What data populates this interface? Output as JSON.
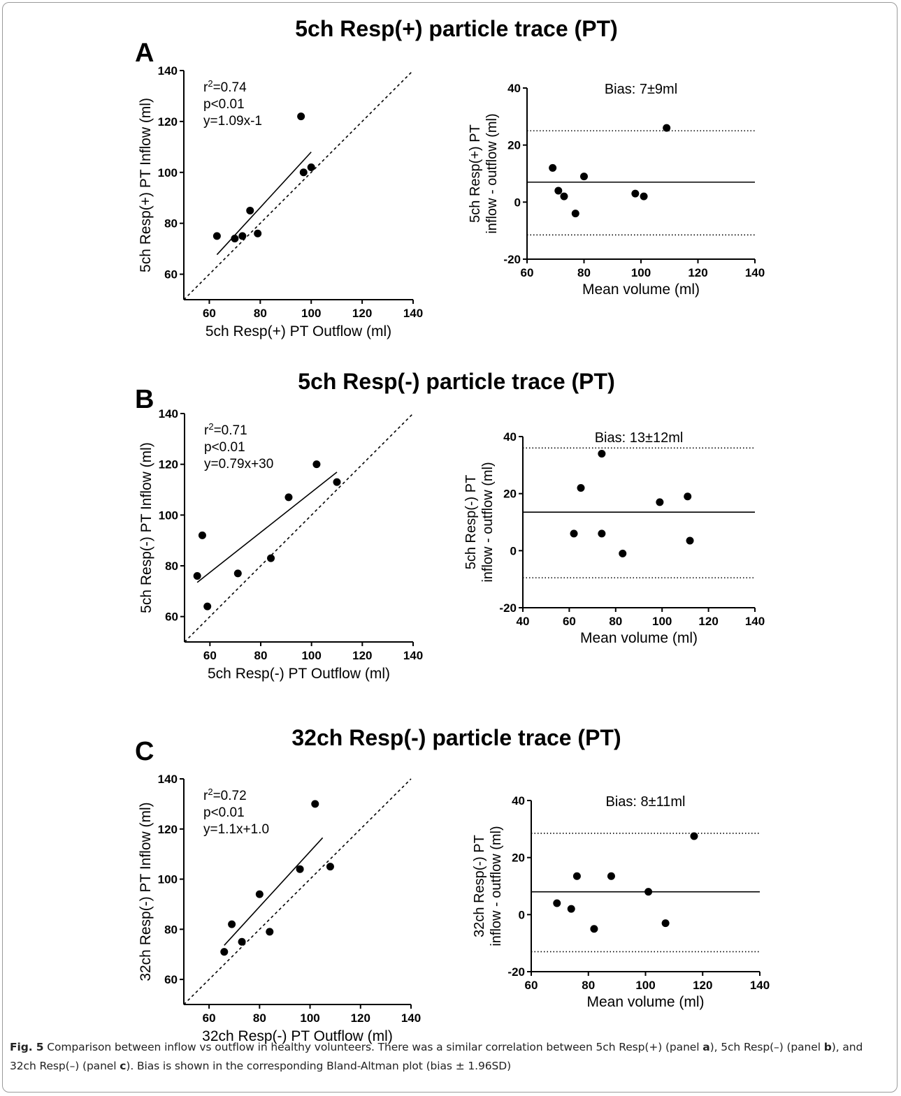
{
  "figure": {
    "caption": {
      "label": "Fig. 5",
      "text1": " Comparison between inflow vs outflow in healthy volunteers. There was a similar correlation between 5ch Resp(+) (panel ",
      "p1": "a",
      "text2": "), 5ch Resp(–) (panel ",
      "p2": "b",
      "text3": "), and 32ch Resp(–) (panel ",
      "p3": "c",
      "text4": "). Bias is shown in the corresponding Bland-Altman plot (bias ± 1.96SD)"
    }
  },
  "chart_data": [
    {
      "panel": "A",
      "title": "5ch Resp(+) particle trace (PT)",
      "type": "scatter",
      "xlabel": "5ch Resp(+) PT Outflow (ml)",
      "ylabel": "5ch Resp(+) PT Inflow (ml)",
      "xlim": [
        50,
        140
      ],
      "ylim": [
        50,
        140
      ],
      "xticks": [
        60,
        80,
        100,
        120,
        140
      ],
      "yticks": [
        60,
        80,
        100,
        120,
        140
      ],
      "stats": [
        "r²=0.74",
        "p<0.01",
        "y=1.09x-1"
      ],
      "x": [
        63,
        70,
        73,
        76,
        79,
        96,
        97,
        100
      ],
      "y": [
        75,
        74,
        75,
        85,
        76,
        122,
        100,
        102
      ],
      "regression_x": [
        63,
        100
      ],
      "identity_line": true
    },
    {
      "panel": "A",
      "title": "Bias: 7±9ml",
      "type": "scatter",
      "xlabel": "Mean volume (ml)",
      "ylabel": "5ch Resp(+) PT\ninflow - outflow (ml)",
      "xlim": [
        60,
        140
      ],
      "ylim": [
        -20,
        40
      ],
      "xticks": [
        60,
        80,
        100,
        120,
        140
      ],
      "yticks": [
        -20,
        0,
        20,
        40
      ],
      "x": [
        69,
        71,
        73,
        77,
        80,
        98,
        101,
        109
      ],
      "y": [
        12,
        4,
        2,
        -4,
        9,
        3,
        2,
        26
      ],
      "bias": 7,
      "upper_loa": 25,
      "lower_loa": -11.5
    },
    {
      "panel": "B",
      "title": "5ch Resp(-) particle trace (PT)",
      "type": "scatter",
      "xlabel": "5ch Resp(-) PT Outflow (ml)",
      "ylabel": "5ch Resp(-) PT Inflow (ml)",
      "xlim": [
        50,
        140
      ],
      "ylim": [
        50,
        140
      ],
      "xticks": [
        60,
        80,
        100,
        120,
        140
      ],
      "yticks": [
        60,
        80,
        100,
        120,
        140
      ],
      "stats": [
        "r²=0.71",
        "p<0.01",
        "y=0.79x+30"
      ],
      "x": [
        55,
        57,
        59,
        71,
        84,
        91,
        102,
        110
      ],
      "y": [
        76,
        92,
        64,
        77,
        83,
        107,
        120,
        113
      ],
      "regression_x": [
        55,
        110
      ],
      "identity_line": true
    },
    {
      "panel": "B",
      "title": "Bias: 13±12ml",
      "type": "scatter",
      "xlabel": "Mean volume (ml)",
      "ylabel": "5ch Resp(-) PT\ninflow - outflow (ml)",
      "xlim": [
        40,
        140
      ],
      "ylim": [
        -20,
        40
      ],
      "xticks": [
        40,
        60,
        80,
        100,
        120,
        140
      ],
      "yticks": [
        -20,
        0,
        20,
        40
      ],
      "x": [
        62,
        65,
        74,
        74,
        83,
        99,
        111,
        112
      ],
      "y": [
        6,
        22,
        34,
        6,
        -1,
        17,
        19,
        3.5
      ],
      "bias": 13.5,
      "upper_loa": 36,
      "lower_loa": -9.5
    },
    {
      "panel": "C",
      "title": "32ch Resp(-) particle trace (PT)",
      "type": "scatter",
      "xlabel": "32ch Resp(-) PT Outflow (ml)",
      "ylabel": "32ch Resp(-) PT Inflow (ml)",
      "xlim": [
        50,
        140
      ],
      "ylim": [
        50,
        140
      ],
      "xticks": [
        60,
        80,
        100,
        120,
        140
      ],
      "yticks": [
        60,
        80,
        100,
        120,
        140
      ],
      "stats": [
        "r²=0.72",
        "p<0.01",
        "y=1.1x+1.0"
      ],
      "x": [
        66,
        69,
        73,
        80,
        84,
        96,
        102,
        108
      ],
      "y": [
        71,
        82,
        75,
        94,
        79,
        104,
        130,
        105
      ],
      "regression_x": [
        66,
        105
      ],
      "identity_line": true
    },
    {
      "panel": "C",
      "title": "Bias: 8±11ml",
      "type": "scatter",
      "xlabel": "Mean volume (ml)",
      "ylabel": "32ch Resp(-) PT\ninflow - outflow (ml)",
      "xlim": [
        60,
        140
      ],
      "ylim": [
        -20,
        40
      ],
      "xticks": [
        60,
        80,
        100,
        120,
        140
      ],
      "yticks": [
        -20,
        0,
        20,
        40
      ],
      "x": [
        69,
        74,
        76,
        82,
        88,
        101,
        107,
        117
      ],
      "y": [
        4,
        2,
        13.5,
        -5,
        13.5,
        8,
        -3,
        27.5
      ],
      "bias": 8,
      "upper_loa": 28.5,
      "lower_loa": -13
    }
  ]
}
